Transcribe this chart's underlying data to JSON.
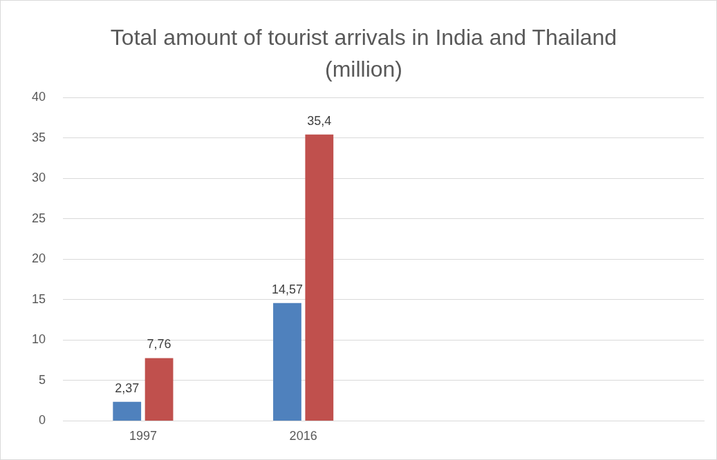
{
  "chart_data": {
    "type": "bar",
    "title": "Total amount of tourist arrivals in India and Thailand (million)",
    "categories": [
      "1997",
      "2016",
      null,
      null
    ],
    "series": [
      {
        "color": "#4f81bd",
        "values": [
          2.37,
          14.57,
          null,
          null
        ],
        "value_labels": [
          "2,37",
          "14,57",
          null,
          null
        ]
      },
      {
        "color": "#c0504d",
        "values": [
          7.76,
          35.4,
          null,
          null
        ],
        "value_labels": [
          "7,76",
          "35,4",
          null,
          null
        ]
      }
    ],
    "ylim": [
      0,
      40
    ],
    "yticks": [
      0,
      5,
      10,
      15,
      20,
      25,
      30,
      35,
      40
    ],
    "grid": "y",
    "legend": false
  }
}
